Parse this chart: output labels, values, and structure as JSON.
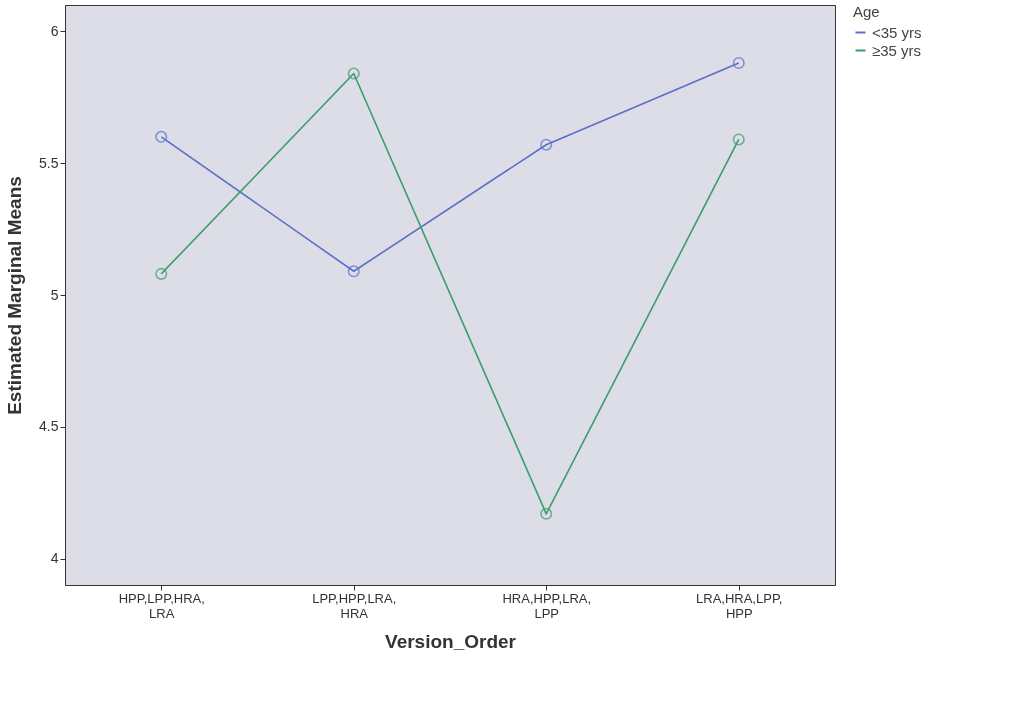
{
  "chart_data": {
    "type": "line",
    "xlabel": "Version_Order",
    "ylabel": "Estimated Marginal Means",
    "legend_title": "Age",
    "categories": [
      "HPP,LPP,HRA, LRA",
      "LPP,HPP,LRA, HRA",
      "HRA,HPP,LRA, LPP",
      "LRA,HRA,LPP, HPP"
    ],
    "series": [
      {
        "name": "<35 yrs",
        "color": "#5b6fc8",
        "values": [
          5.6,
          5.09,
          5.57,
          5.88
        ]
      },
      {
        "name": "≥35 yrs",
        "color": "#3a9e6a",
        "values": [
          5.08,
          5.84,
          4.17,
          5.59
        ]
      }
    ],
    "ylim": [
      3.9,
      6.1
    ],
    "yticks": [
      4,
      4.5,
      5,
      5.5,
      6
    ],
    "grid": false,
    "legend": "top right",
    "marker": "circle",
    "line_style": "solid"
  }
}
